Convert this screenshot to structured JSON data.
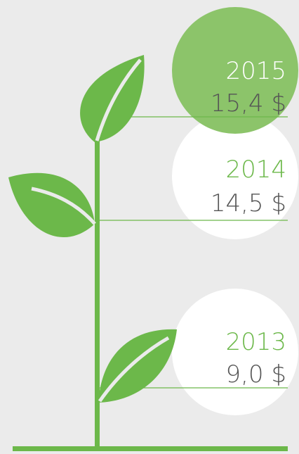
{
  "items": [
    {
      "year": "2015",
      "amount": "15,4 $"
    },
    {
      "year": "2014",
      "amount": "14,5 $"
    },
    {
      "year": "2013",
      "amount": "9,0 $"
    }
  ]
}
